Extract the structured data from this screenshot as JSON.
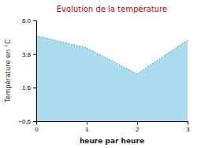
{
  "chart_data": {
    "type": "area",
    "title": "Evolution de la température",
    "xlabel": "heure par heure",
    "ylabel": "Température en °C",
    "x": [
      0,
      1,
      2,
      3
    ],
    "values": [
      5.0,
      4.2,
      2.5,
      4.7
    ],
    "color": "#aadcee",
    "line_style": "dotted",
    "xlim": [
      0,
      3
    ],
    "ylim": [
      -0.6,
      6.0
    ],
    "xticks": [
      0,
      1,
      2,
      3
    ],
    "yticks": [
      {
        "value": -0.6,
        "label": "−0.6"
      },
      1.6,
      3.8,
      {
        "value": 6.0,
        "label": "6.0"
      }
    ]
  }
}
